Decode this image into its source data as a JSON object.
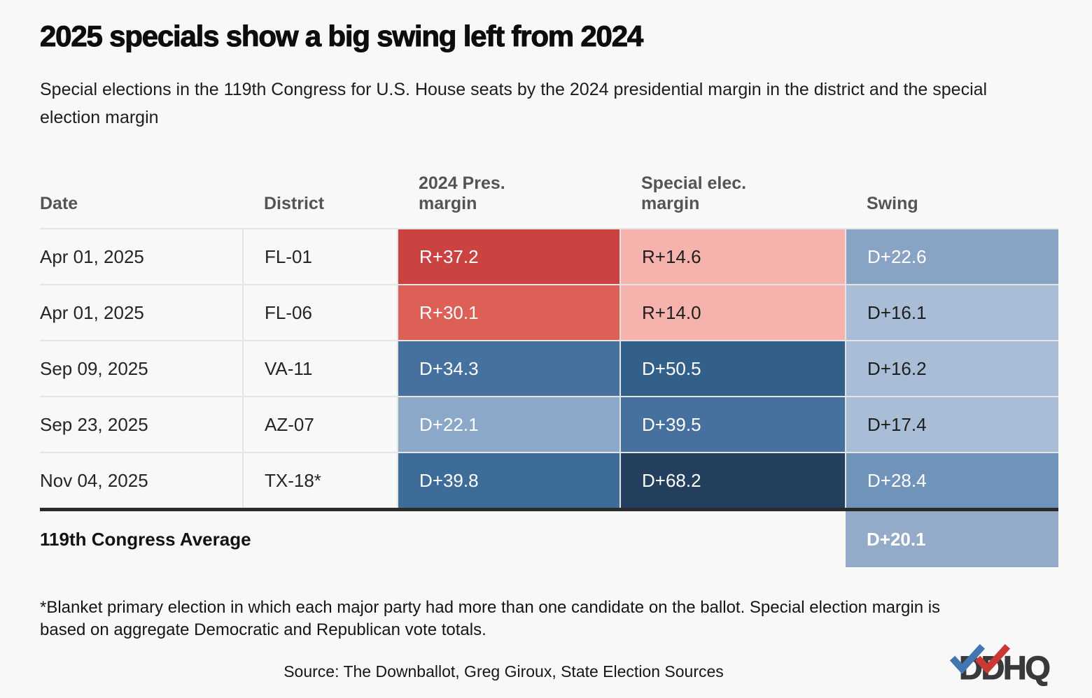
{
  "header": {
    "title": "2025 specials show a big swing left from 2024",
    "subtitle": "Special elections in the 119th Congress for U.S. House seats by the 2024 presidential margin in the district and the special election margin"
  },
  "chart_data": {
    "type": "table",
    "columns": [
      "Date",
      "District",
      "2024 Pres.\nmargin",
      "Special elec.\nmargin",
      "Swing"
    ],
    "rows": [
      {
        "date": "Apr 01, 2025",
        "district": "FL-01",
        "pres": {
          "text": "R+37.2",
          "bg": "#ca4341",
          "fg": "#ffffff"
        },
        "special": {
          "text": "R+14.6",
          "bg": "#f6b2ac",
          "fg": "#1e1e1e"
        },
        "swing": {
          "text": "D+22.6",
          "bg": "#89a3c4",
          "fg": "#ffffff"
        }
      },
      {
        "date": "Apr 01, 2025",
        "district": "FL-06",
        "pres": {
          "text": "R+30.1",
          "bg": "#dc6056",
          "fg": "#ffffff"
        },
        "special": {
          "text": "R+14.0",
          "bg": "#f6b2ac",
          "fg": "#1e1e1e"
        },
        "swing": {
          "text": "D+16.1",
          "bg": "#a9bdd7",
          "fg": "#1e1e1e"
        }
      },
      {
        "date": "Sep 09, 2025",
        "district": "VA-11",
        "pres": {
          "text": "D+34.3",
          "bg": "#46719e",
          "fg": "#ffffff"
        },
        "special": {
          "text": "D+50.5",
          "bg": "#336089",
          "fg": "#ffffff"
        },
        "swing": {
          "text": "D+16.2",
          "bg": "#a9bdd7",
          "fg": "#1e1e1e"
        }
      },
      {
        "date": "Sep 23, 2025",
        "district": "AZ-07",
        "pres": {
          "text": "D+22.1",
          "bg": "#8ba8c8",
          "fg": "#ffffff"
        },
        "special": {
          "text": "D+39.5",
          "bg": "#46719e",
          "fg": "#ffffff"
        },
        "swing": {
          "text": "D+17.4",
          "bg": "#a9bdd7",
          "fg": "#1e1e1e"
        }
      },
      {
        "date": "Nov 04, 2025",
        "district": "TX-18*",
        "pres": {
          "text": "D+39.8",
          "bg": "#3e6c99",
          "fg": "#ffffff"
        },
        "special": {
          "text": "D+68.2",
          "bg": "#243f5d",
          "fg": "#ffffff"
        },
        "swing": {
          "text": "D+28.4",
          "bg": "#7093ba",
          "fg": "#ffffff"
        }
      }
    ],
    "average": {
      "label": "119th Congress Average",
      "swing": {
        "text": "D+20.1",
        "bg": "#93abc9",
        "fg": "#ffffff"
      }
    }
  },
  "footer": {
    "footnote": "*Blanket primary election in which each major party had more than one candidate on the ballot. Special election margin is based on aggregate Democratic and Republican vote totals.",
    "source": "Source: The Downballot, Greg Giroux, State Election Sources",
    "logo_text": "DDHQ",
    "logo_check_blue": "#4377b3",
    "logo_check_red": "#ca3a35"
  }
}
